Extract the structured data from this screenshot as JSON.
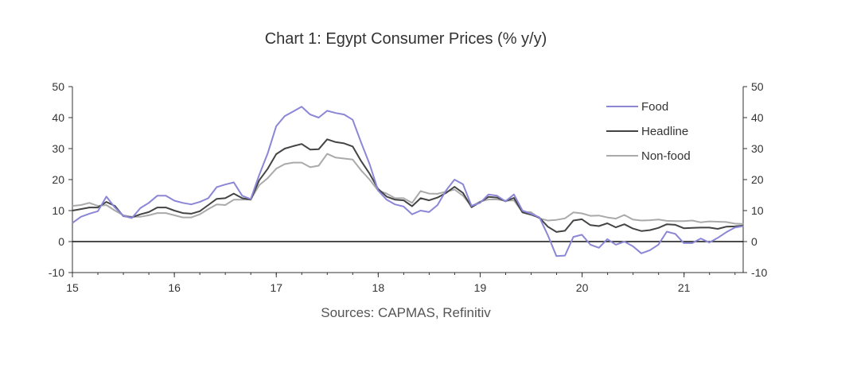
{
  "chart_data": {
    "type": "line",
    "title": "Chart 1: Egypt Consumer Prices (% y/y)",
    "source": "Sources: CAPMAS, Refinitiv",
    "xlabel": "",
    "ylabel": "",
    "xlim": [
      15,
      21.58
    ],
    "ylim": [
      -10,
      50
    ],
    "x_ticks": [
      15,
      16,
      17,
      18,
      19,
      20,
      21
    ],
    "x_tick_labels": [
      "15",
      "16",
      "17",
      "18",
      "19",
      "20",
      "21"
    ],
    "y_ticks": [
      -10,
      0,
      10,
      20,
      30,
      40,
      50
    ],
    "y_tick_labels": [
      "-10",
      "0",
      "10",
      "20",
      "30",
      "40",
      "50"
    ],
    "dual_y_axis": true,
    "grid": false,
    "zero_line": true,
    "legend_position": "top-right",
    "series": [
      {
        "name": "Food",
        "color": "#8b86d6",
        "x0": 15,
        "step": 0.0833,
        "values": [
          6,
          8,
          9,
          9.8,
          14.5,
          11,
          8.3,
          7.6,
          10.8,
          12.5,
          14.8,
          14.8,
          13.2,
          12.5,
          12,
          12.8,
          14,
          17.6,
          18.4,
          19.1,
          14.8,
          13.7,
          21.5,
          28.5,
          37.2,
          40.5,
          42,
          43.5,
          41,
          40,
          42.2,
          41.5,
          41,
          39.3,
          32,
          25,
          16.5,
          13.5,
          12,
          11.3,
          8.8,
          10,
          9.5,
          11.8,
          16.5,
          20,
          18.5,
          11.5,
          12.5,
          15.2,
          14.8,
          13,
          15.2,
          10,
          9,
          7.8,
          2,
          -4.7,
          -4.5,
          1.5,
          2.2,
          -1,
          -2,
          0.8,
          -1,
          0,
          -1.5,
          -3.8,
          -2.8,
          -1,
          3.2,
          2.5,
          -0.5,
          -0.5,
          1,
          -0.3,
          1.2,
          3,
          4.5,
          5
        ]
      },
      {
        "name": "Headline",
        "color": "#444444",
        "x0": 15,
        "step": 0.0833,
        "values": [
          10,
          10.5,
          11,
          11,
          12.8,
          11.5,
          8.2,
          7.8,
          8.8,
          9.5,
          11,
          11,
          10,
          9.2,
          9,
          9.8,
          11.8,
          13.8,
          14,
          15.5,
          14,
          13.5,
          19.8,
          23.5,
          28.2,
          30,
          30.8,
          31.5,
          29.7,
          29.8,
          33,
          32.1,
          31.7,
          30.7,
          26,
          21.9,
          17,
          14.5,
          13.5,
          13.3,
          11.4,
          14,
          13.3,
          14.2,
          15.7,
          17.7,
          15.7,
          11.1,
          12.7,
          14.4,
          14.2,
          13,
          14.1,
          9.4,
          8.7,
          7.7,
          4.8,
          3.1,
          3.5,
          6.8,
          7.2,
          5.3,
          5,
          5.9,
          4.6,
          5.6,
          4.2,
          3.4,
          3.7,
          4.4,
          5.6,
          5.4,
          4.3,
          4.4,
          4.5,
          4.5,
          4.1,
          4.8,
          4.9,
          5.2
        ]
      },
      {
        "name": "Non-food",
        "color": "#aaaaaa",
        "x0": 15,
        "step": 0.0833,
        "values": [
          11.5,
          11.8,
          12.5,
          11.5,
          11.8,
          10,
          8.5,
          8,
          8,
          8.5,
          9.2,
          9.2,
          8.5,
          7.8,
          7.8,
          8.8,
          10.5,
          12,
          11.8,
          13.5,
          13.5,
          13.6,
          18.2,
          20.5,
          23.5,
          25,
          25.5,
          25.5,
          24,
          24.5,
          28.3,
          27.1,
          26.8,
          26.5,
          23,
          20,
          16.5,
          15.5,
          14,
          14,
          12.5,
          16.3,
          15.5,
          15.4,
          16.1,
          16.8,
          14.8,
          11.4,
          12.9,
          13.6,
          13.6,
          13.2,
          13.3,
          9.5,
          9.5,
          7.5,
          6.8,
          7,
          7.5,
          9.4,
          9.1,
          8.3,
          8.4,
          7.8,
          7.4,
          8.6,
          7.1,
          6.8,
          6.9,
          7.1,
          6.7,
          6.6,
          6.6,
          6.8,
          6.2,
          6.5,
          6.4,
          6.3,
          5.8,
          5.7
        ]
      }
    ]
  }
}
